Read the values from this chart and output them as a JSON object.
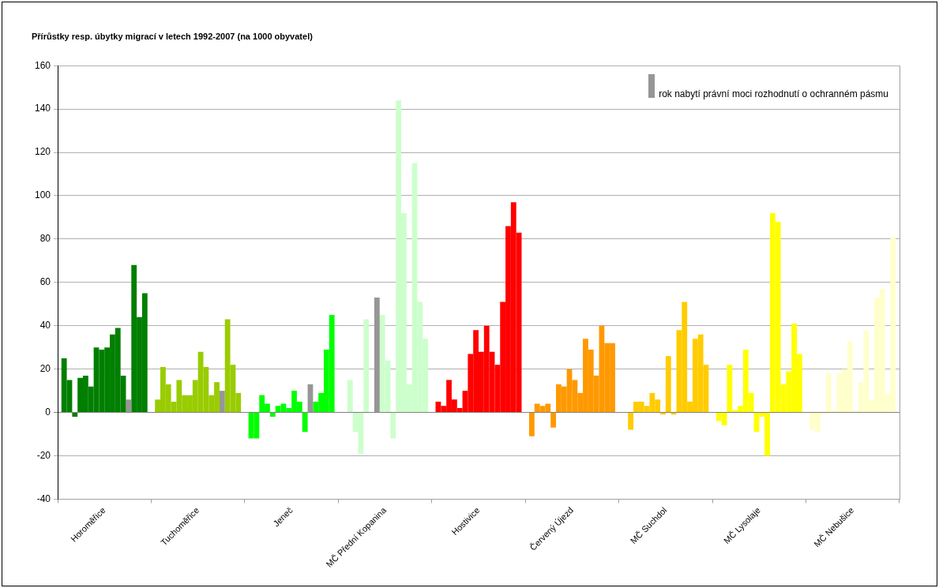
{
  "chart_data": {
    "type": "bar",
    "title": "Přírůstky resp. úbytky migrací v letech 1992-2007 (na 1000 obyvatel)",
    "categories": [
      "Horoměřice",
      "Tuchoměřice",
      "Jeneč",
      "MČ Přední Kopanina",
      "Hostivice",
      "Červený Újezd",
      "MČ Suchdol",
      "MČ Lysolaje",
      "MČ Nebušice"
    ],
    "series": [
      {
        "values": [
          25,
          6,
          -12,
          0,
          5,
          -11,
          0,
          -4,
          -8
        ],
        "colors": [
          "#007f00",
          "#99cc00",
          "#00ff00",
          "#ccffcc",
          "#ff0000",
          "#ff9900",
          "#ffcc00",
          "#ffff00",
          "#ffffcc"
        ]
      },
      {
        "values": [
          15,
          21,
          -12,
          15,
          3,
          4,
          -8,
          -6,
          -9
        ],
        "colors": [
          "#007f00",
          "#99cc00",
          "#00ff00",
          "#ccffcc",
          "#ff0000",
          "#ff9900",
          "#ffcc00",
          "#ffff00",
          "#ffffcc"
        ]
      },
      {
        "values": [
          -2,
          13,
          8,
          -9,
          15,
          3,
          5,
          22,
          -1
        ],
        "colors": [
          "#007f00",
          "#99cc00",
          "#00ff00",
          "#ccffcc",
          "#ff0000",
          "#ff9900",
          "#ffcc00",
          "#ffff00",
          "#ffffcc"
        ]
      },
      {
        "values": [
          16,
          5,
          4,
          -19,
          6,
          4,
          5,
          1,
          18
        ],
        "colors": [
          "#007f00",
          "#99cc00",
          "#00ff00",
          "#ccffcc",
          "#ff0000",
          "#ff9900",
          "#ffcc00",
          "#ffff00",
          "#ffffcc"
        ]
      },
      {
        "values": [
          17,
          15,
          -2,
          43,
          2,
          -7,
          3,
          3,
          1
        ],
        "colors": [
          "#007f00",
          "#99cc00",
          "#00ff00",
          "#ccffcc",
          "#ff0000",
          "#ff9900",
          "#ffcc00",
          "#ffff00",
          "#ffffcc"
        ]
      },
      {
        "values": [
          12,
          8,
          3,
          0,
          10,
          13,
          9,
          29,
          18
        ],
        "colors": [
          "#007f00",
          "#99cc00",
          "#00ff00",
          "#ccffcc",
          "#ff0000",
          "#ff9900",
          "#ffcc00",
          "#ffff00",
          "#ffffcc"
        ]
      },
      {
        "values": [
          30,
          8,
          4,
          53,
          27,
          12,
          6,
          9,
          20
        ],
        "colors": [
          "#007f00",
          "#99cc00",
          "#00ff00",
          "#969696",
          "#ff0000",
          "#ff9900",
          "#ffcc00",
          "#ffff00",
          "#ffffcc"
        ]
      },
      {
        "values": [
          29,
          15,
          2,
          45,
          38,
          20,
          -1,
          -9,
          33
        ],
        "colors": [
          "#007f00",
          "#99cc00",
          "#00ff00",
          "#ccffcc",
          "#ff0000",
          "#ff9900",
          "#ffcc00",
          "#ffff00",
          "#ffffcc"
        ]
      },
      {
        "values": [
          30,
          28,
          10,
          24,
          28,
          15,
          26,
          -2,
          1
        ],
        "colors": [
          "#007f00",
          "#99cc00",
          "#00ff00",
          "#ccffcc",
          "#ff0000",
          "#ff9900",
          "#ffcc00",
          "#ffff00",
          "#ffffcc"
        ]
      },
      {
        "values": [
          36,
          21,
          5,
          -12,
          40,
          9,
          -1,
          -20,
          14
        ],
        "colors": [
          "#007f00",
          "#99cc00",
          "#00ff00",
          "#ccffcc",
          "#ff0000",
          "#ff9900",
          "#ffcc00",
          "#ffff00",
          "#ffffcc"
        ]
      },
      {
        "values": [
          39,
          8,
          -9,
          144,
          28,
          34,
          38,
          92,
          38
        ],
        "colors": [
          "#007f00",
          "#99cc00",
          "#00ff00",
          "#ccffcc",
          "#ff0000",
          "#ff9900",
          "#ffcc00",
          "#ffff00",
          "#ffffcc"
        ]
      },
      {
        "values": [
          17,
          14,
          13,
          92,
          22,
          29,
          51,
          88,
          6
        ],
        "colors": [
          "#007f00",
          "#99cc00",
          "#969696",
          "#ccffcc",
          "#ff0000",
          "#ff9900",
          "#ffcc00",
          "#ffff00",
          "#ffffcc"
        ]
      },
      {
        "values": [
          6,
          10,
          5,
          13,
          51,
          17,
          5,
          13,
          53
        ],
        "colors": [
          "#969696",
          "#969696",
          "#00ff00",
          "#ccffcc",
          "#ff0000",
          "#ff9900",
          "#ffcc00",
          "#ffff00",
          "#ffffcc"
        ]
      },
      {
        "values": [
          68,
          43,
          9,
          115,
          86,
          40,
          34,
          19,
          57
        ],
        "colors": [
          "#007f00",
          "#99cc00",
          "#00ff00",
          "#ccffcc",
          "#ff0000",
          "#ff9900",
          "#ffcc00",
          "#ffff00",
          "#ffffcc"
        ]
      },
      {
        "values": [
          44,
          22,
          29,
          51,
          97,
          32,
          36,
          41,
          9
        ],
        "colors": [
          "#007f00",
          "#99cc00",
          "#00ff00",
          "#ccffcc",
          "#ff0000",
          "#ff9900",
          "#ffcc00",
          "#ffff00",
          "#ffffcc"
        ]
      },
      {
        "values": [
          55,
          9,
          45,
          34,
          83,
          32,
          22,
          27,
          81
        ],
        "colors": [
          "#007f00",
          "#99cc00",
          "#00ff00",
          "#ccffcc",
          "#ff0000",
          "#ff9900",
          "#ffcc00",
          "#ffff00",
          "#ffffcc"
        ]
      }
    ],
    "ylim": [
      -40,
      160
    ],
    "yticks": [
      -40,
      -20,
      0,
      20,
      40,
      60,
      80,
      100,
      120,
      140,
      160
    ],
    "grid": "y",
    "annotations": [
      "rok nabytí právní moci rozhodnutí o ochranném pásmu"
    ]
  }
}
